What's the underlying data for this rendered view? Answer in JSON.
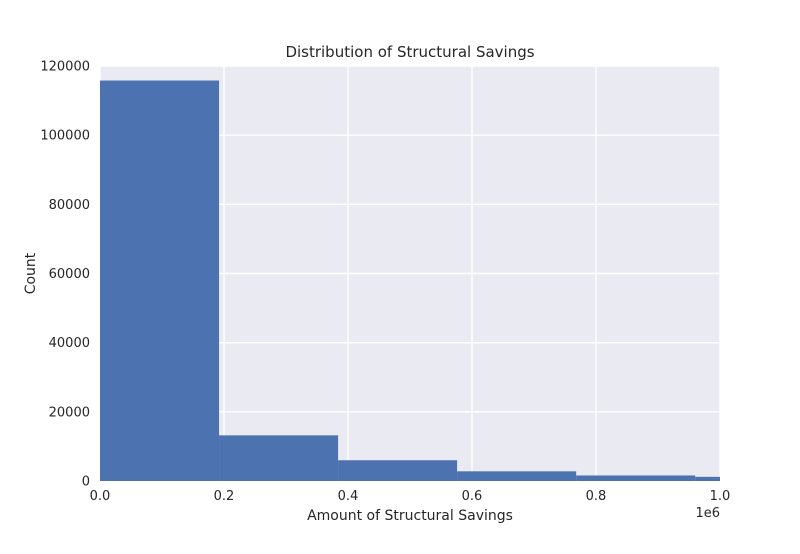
{
  "chart_data": {
    "type": "bar",
    "title": "Distribution of Structural Savings",
    "xlabel": "Amount of Structural Savings",
    "ylabel": "Count",
    "x_offset_text": "1e6",
    "xlim": [
      0,
      1.0
    ],
    "ylim": [
      0,
      120000
    ],
    "x_ticks": [
      "0.0",
      "0.2",
      "0.4",
      "0.6",
      "0.8",
      "1.0"
    ],
    "y_ticks": [
      "0",
      "20000",
      "40000",
      "60000",
      "80000",
      "100000",
      "120000"
    ],
    "grid": true,
    "legend": "none",
    "bin_edges": [
      0,
      0.192,
      0.384,
      0.576,
      0.768,
      0.96,
      1.0
    ],
    "values": [
      115800,
      13200,
      6000,
      2800,
      1600,
      1200
    ],
    "colors": {
      "bar": "#4c72b0",
      "plot_background": "#eaeaf2",
      "grid": "#ffffff"
    }
  }
}
